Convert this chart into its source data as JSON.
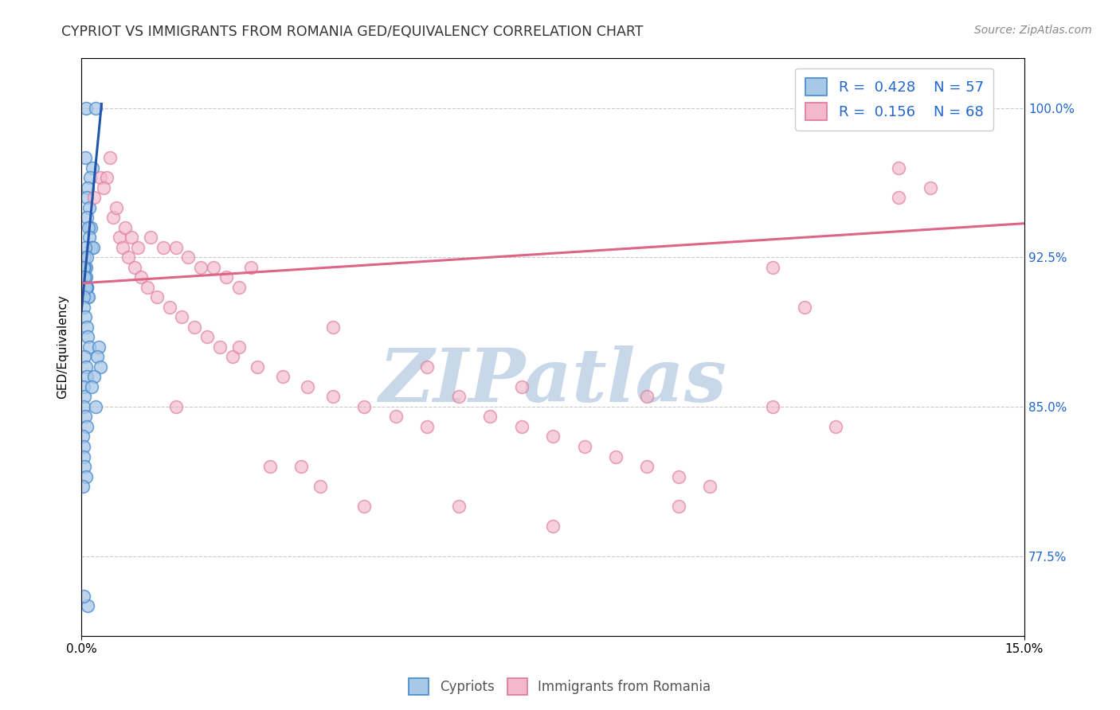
{
  "title": "CYPRIOT VS IMMIGRANTS FROM ROMANIA GED/EQUIVALENCY CORRELATION CHART",
  "source": "Source: ZipAtlas.com",
  "ylabel": "GED/Equivalency",
  "ytick_labels": [
    "77.5%",
    "85.0%",
    "92.5%",
    "100.0%"
  ],
  "ytick_values": [
    0.775,
    0.85,
    0.925,
    1.0
  ],
  "xlim": [
    0.0,
    15.0
  ],
  "ylim": [
    0.735,
    1.025
  ],
  "blue_color": "#a8c8e8",
  "pink_color": "#f4b8cc",
  "blue_edge_color": "#4488cc",
  "pink_edge_color": "#dd7799",
  "blue_line_color": "#2255aa",
  "pink_line_color": "#dd6688",
  "watermark": "ZIPatlas",
  "watermark_color": "#c8d8e8",
  "blue_x": [
    0.07,
    0.22,
    0.06,
    0.18,
    0.14,
    0.1,
    0.08,
    0.12,
    0.09,
    0.15,
    0.11,
    0.13,
    0.16,
    0.19,
    0.05,
    0.07,
    0.04,
    0.06,
    0.08,
    0.1,
    0.05,
    0.07,
    0.09,
    0.11,
    0.06,
    0.08,
    0.04,
    0.05,
    0.07,
    0.03,
    0.04,
    0.06,
    0.08,
    0.1,
    0.12,
    0.05,
    0.07,
    0.09,
    0.03,
    0.05,
    0.04,
    0.06,
    0.08,
    0.02,
    0.04,
    0.03,
    0.05,
    0.07,
    0.02,
    0.28,
    0.25,
    0.3,
    0.2,
    0.16,
    0.22,
    0.1,
    0.03
  ],
  "blue_y": [
    1.0,
    1.0,
    0.975,
    0.97,
    0.965,
    0.96,
    0.955,
    0.95,
    0.945,
    0.94,
    0.94,
    0.935,
    0.93,
    0.93,
    0.925,
    0.92,
    0.92,
    0.915,
    0.91,
    0.905,
    0.92,
    0.915,
    0.91,
    0.905,
    0.93,
    0.925,
    0.92,
    0.915,
    0.91,
    0.905,
    0.9,
    0.895,
    0.89,
    0.885,
    0.88,
    0.875,
    0.87,
    0.865,
    0.86,
    0.855,
    0.85,
    0.845,
    0.84,
    0.835,
    0.83,
    0.825,
    0.82,
    0.815,
    0.81,
    0.88,
    0.875,
    0.87,
    0.865,
    0.86,
    0.85,
    0.75,
    0.755
  ],
  "pink_x": [
    0.45,
    0.3,
    0.2,
    0.5,
    0.6,
    0.4,
    0.55,
    0.35,
    0.7,
    0.8,
    0.9,
    1.1,
    1.3,
    1.5,
    1.7,
    1.9,
    2.1,
    2.3,
    2.5,
    2.7,
    0.65,
    0.75,
    0.85,
    0.95,
    1.05,
    1.2,
    1.4,
    1.6,
    1.8,
    2.0,
    2.2,
    2.4,
    2.8,
    3.2,
    3.6,
    4.0,
    4.5,
    5.0,
    5.5,
    6.0,
    6.5,
    7.0,
    7.5,
    8.0,
    8.5,
    9.0,
    9.5,
    10.0,
    11.0,
    12.0,
    13.0,
    13.5,
    3.0,
    3.5,
    4.5,
    6.0,
    7.5,
    9.5,
    11.5,
    3.8,
    1.5,
    2.5,
    4.0,
    5.5,
    7.0,
    9.0,
    11.0,
    13.0
  ],
  "pink_y": [
    0.975,
    0.965,
    0.955,
    0.945,
    0.935,
    0.965,
    0.95,
    0.96,
    0.94,
    0.935,
    0.93,
    0.935,
    0.93,
    0.93,
    0.925,
    0.92,
    0.92,
    0.915,
    0.91,
    0.92,
    0.93,
    0.925,
    0.92,
    0.915,
    0.91,
    0.905,
    0.9,
    0.895,
    0.89,
    0.885,
    0.88,
    0.875,
    0.87,
    0.865,
    0.86,
    0.855,
    0.85,
    0.845,
    0.84,
    0.855,
    0.845,
    0.84,
    0.835,
    0.83,
    0.825,
    0.82,
    0.815,
    0.81,
    0.85,
    0.84,
    0.97,
    0.96,
    0.82,
    0.82,
    0.8,
    0.8,
    0.79,
    0.8,
    0.9,
    0.81,
    0.85,
    0.88,
    0.89,
    0.87,
    0.86,
    0.855,
    0.92,
    0.955
  ]
}
